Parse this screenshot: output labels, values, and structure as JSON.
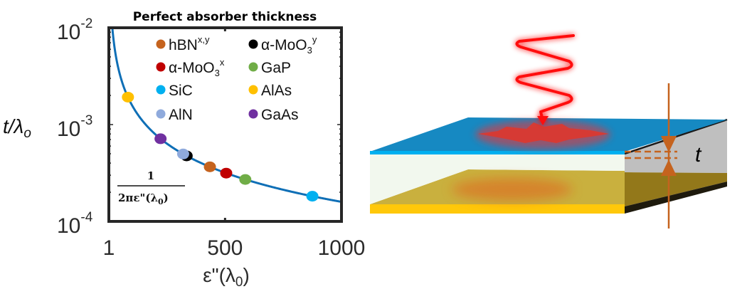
{
  "chart_data": {
    "type": "line",
    "title": "Perfect absorber thickness",
    "xlabel": "ε\"(λ",
    "xlabel_sub": "0",
    "xlabel_tail": ")",
    "ylabel": "t/λ",
    "ylabel_sub": "o",
    "xlim": [
      1,
      1000
    ],
    "ylim": [
      0.0001,
      0.01
    ],
    "yscale": "log",
    "xscale": "linear",
    "grid": false,
    "legend_placement": "top-right",
    "x_ticks": [
      {
        "value": 1,
        "label": "1"
      },
      {
        "value": 500,
        "label": "500"
      },
      {
        "value": 1000,
        "label": "1000"
      }
    ],
    "y_ticks": [
      {
        "value": 0.01,
        "base": "10",
        "exp": "-2"
      },
      {
        "value": 0.001,
        "base": "10",
        "exp": "-3"
      },
      {
        "value": 0.0001,
        "base": "10",
        "exp": "-4"
      }
    ],
    "curve": {
      "name": "1/(2πε\"(λ0))",
      "formula_numerator": "1",
      "formula_denominator": "2πε\"(λ",
      "formula_sub": "0",
      "formula_tail": ")",
      "color": "#0f6fb6"
    },
    "series": [
      {
        "name": "hBN",
        "sup": "x,y",
        "sub": "",
        "color": "#c5631e",
        "x": 435,
        "y": 0.000366
      },
      {
        "name": "α-MoO",
        "sub": "3",
        "sup": "y",
        "color": "#000000",
        "x": 335,
        "y": 0.000475
      },
      {
        "name": "α-MoO",
        "sub": "3",
        "sup": "x",
        "color": "#c00000",
        "x": 505,
        "y": 0.000315
      },
      {
        "name": "GaP",
        "sup": "",
        "sub": "",
        "color": "#70ad47",
        "x": 587,
        "y": 0.000271
      },
      {
        "name": "SiC",
        "sup": "",
        "sub": "",
        "color": "#00b0f0",
        "x": 875,
        "y": 0.000182
      },
      {
        "name": "AlAs",
        "sup": "",
        "sub": "",
        "color": "#ffc000",
        "x": 83,
        "y": 0.00192
      },
      {
        "name": "AlN",
        "sup": "",
        "sub": "",
        "color": "#8faadc",
        "x": 320,
        "y": 0.000497
      },
      {
        "name": "GaAs",
        "sup": "",
        "sub": "",
        "color": "#7030a0",
        "x": 223,
        "y": 0.000714
      }
    ]
  },
  "diagram": {
    "thickness_label": "t",
    "colors": {
      "top_layer": "#1689c2",
      "top_edge": "#00b0f0",
      "dielectric": "#f2f8ee",
      "substrate_plane": "#c9b03e",
      "substrate_front": "#ffc80a",
      "side_gray": "#bfbfbf",
      "side_dark": "#93781a",
      "bottom_edge": "#1e1a0d",
      "marker": "#c5631e",
      "wave": "#ff1a1a"
    }
  }
}
